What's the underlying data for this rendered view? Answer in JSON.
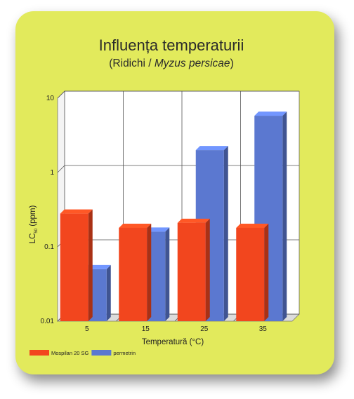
{
  "chart_data": {
    "type": "bar",
    "title": "Influența temperaturii",
    "subtitle_prefix": "(Ridichi / ",
    "subtitle_italic": "Myzus persicae",
    "subtitle_suffix": ")",
    "xlabel": "Temperatură (°C)",
    "ylabel": "LC",
    "ylabel_sub": "50",
    "ylabel_unit": " (ppm)",
    "yscale": "log",
    "ylim": [
      0.01,
      10
    ],
    "yticks": [
      0.01,
      0.1,
      1,
      10
    ],
    "ytick_labels": [
      "0.01",
      "0.1",
      "1",
      "10"
    ],
    "grid": true,
    "legend_position": "bottom-left",
    "categories": [
      "5",
      "15",
      "25",
      "35"
    ],
    "series": [
      {
        "name": "Mospilan 20 SG",
        "color": "#f2461e",
        "values": [
          0.28,
          0.18,
          0.21,
          0.18
        ]
      },
      {
        "name": "permetrin",
        "color": "#5b78d0",
        "values": [
          0.05,
          0.16,
          2.0,
          5.8
        ]
      }
    ]
  }
}
